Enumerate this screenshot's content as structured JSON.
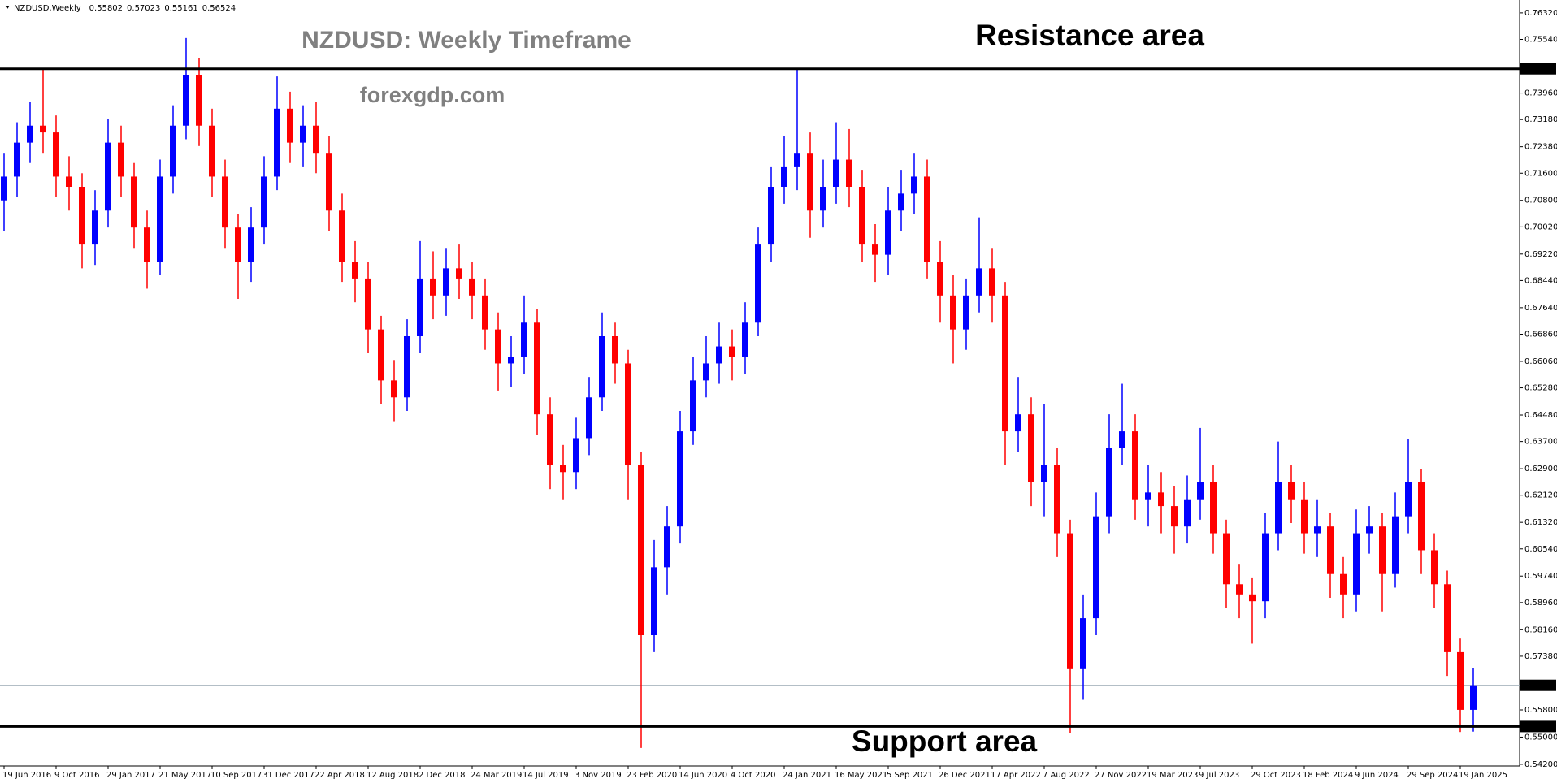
{
  "chart_data": {
    "type": "candlestick",
    "symbol": "NZDUSD,Weekly",
    "title": "NZDUSD: Weekly Timeframe",
    "watermark": "forexgdp.com",
    "annotations": {
      "resistance": "Resistance area",
      "support": "Support area"
    },
    "categories": [
      "19 Jun 2016",
      null,
      null,
      null,
      "9 Oct 2016",
      null,
      null,
      null,
      "29 Jan 2017",
      null,
      null,
      null,
      "21 May 2017",
      null,
      null,
      null,
      "10 Sep 2017",
      null,
      null,
      null,
      "31 Dec 2017",
      null,
      null,
      null,
      "22 Apr 2018",
      null,
      null,
      null,
      "12 Aug 2018",
      null,
      null,
      null,
      "2 Dec 2018",
      null,
      null,
      null,
      "24 Mar 2019",
      null,
      null,
      null,
      "14 Jul 2019",
      null,
      null,
      null,
      "3 Nov 2019",
      null,
      null,
      null,
      "23 Feb 2020",
      null,
      null,
      null,
      "14 Jun 2020",
      null,
      null,
      null,
      "4 Oct 2020",
      null,
      null,
      null,
      "24 Jan 2021",
      null,
      null,
      null,
      "16 May 2021",
      null,
      null,
      null,
      "5 Sep 2021",
      null,
      null,
      null,
      "26 Dec 2021",
      null,
      null,
      null,
      "17 Apr 2022",
      null,
      null,
      null,
      "7 Aug 2022",
      null,
      null,
      null,
      "27 Nov 2022",
      null,
      null,
      null,
      "19 Mar 2023",
      null,
      null,
      null,
      "9 Jul 2023",
      null,
      null,
      null,
      "29 Oct 2023",
      null,
      null,
      null,
      "18 Feb 2024",
      null,
      null,
      null,
      "9 Jun 2024",
      null,
      null,
      null,
      "29 Sep 2024",
      null,
      null,
      null,
      "19 Jan 2025",
      null
    ],
    "open": [
      0.708,
      0.715,
      0.725,
      0.73,
      0.728,
      0.715,
      0.712,
      0.695,
      0.705,
      0.725,
      0.715,
      0.7,
      0.69,
      0.715,
      0.73,
      0.745,
      0.73,
      0.715,
      0.7,
      0.69,
      0.7,
      0.715,
      0.735,
      0.725,
      0.73,
      0.722,
      0.705,
      0.69,
      0.685,
      0.67,
      0.655,
      0.65,
      0.668,
      0.685,
      0.68,
      0.688,
      0.685,
      0.68,
      0.67,
      0.66,
      0.662,
      0.672,
      0.645,
      0.63,
      0.628,
      0.638,
      0.65,
      0.668,
      0.66,
      0.63,
      0.58,
      0.6,
      0.612,
      0.64,
      0.655,
      0.66,
      0.665,
      0.662,
      0.672,
      0.695,
      0.712,
      0.718,
      0.722,
      0.705,
      0.712,
      0.72,
      0.712,
      0.695,
      0.692,
      0.705,
      0.71,
      0.715,
      0.69,
      0.68,
      0.67,
      0.68,
      0.688,
      0.68,
      0.64,
      0.645,
      0.625,
      0.63,
      0.61,
      0.57,
      0.585,
      0.615,
      0.635,
      0.64,
      0.62,
      0.622,
      0.618,
      0.612,
      0.62,
      0.625,
      0.61,
      0.595,
      0.592,
      0.59,
      0.61,
      0.625,
      0.62,
      0.61,
      0.612,
      0.598,
      0.592,
      0.61,
      0.612,
      0.598,
      0.615,
      0.625,
      0.605,
      0.595,
      0.575,
      0.55802
    ],
    "high": [
      0.722,
      0.731,
      0.737,
      0.7465,
      0.733,
      0.721,
      0.716,
      0.711,
      0.732,
      0.73,
      0.719,
      0.705,
      0.72,
      0.736,
      0.7558,
      0.75,
      0.735,
      0.72,
      0.704,
      0.706,
      0.721,
      0.7445,
      0.74,
      0.736,
      0.737,
      0.727,
      0.71,
      0.696,
      0.69,
      0.674,
      0.661,
      0.673,
      0.696,
      0.693,
      0.694,
      0.695,
      0.69,
      0.685,
      0.675,
      0.668,
      0.68,
      0.676,
      0.65,
      0.636,
      0.644,
      0.656,
      0.675,
      0.672,
      0.664,
      0.634,
      0.608,
      0.618,
      0.646,
      0.662,
      0.668,
      0.672,
      0.67,
      0.678,
      0.7,
      0.718,
      0.727,
      0.7465,
      0.728,
      0.72,
      0.731,
      0.729,
      0.717,
      0.701,
      0.712,
      0.717,
      0.722,
      0.72,
      0.696,
      0.686,
      0.685,
      0.703,
      0.694,
      0.684,
      0.656,
      0.65,
      0.648,
      0.635,
      0.614,
      0.592,
      0.622,
      0.645,
      0.654,
      0.645,
      0.63,
      0.628,
      0.624,
      0.627,
      0.641,
      0.63,
      0.614,
      0.601,
      0.597,
      0.616,
      0.637,
      0.63,
      0.625,
      0.62,
      0.616,
      0.603,
      0.617,
      0.618,
      0.616,
      0.622,
      0.6378,
      0.629,
      0.61,
      0.599,
      0.579,
      0.57023
    ],
    "low": [
      0.699,
      0.709,
      0.719,
      0.722,
      0.709,
      0.705,
      0.688,
      0.689,
      0.7,
      0.709,
      0.694,
      0.682,
      0.686,
      0.71,
      0.726,
      0.724,
      0.709,
      0.694,
      0.679,
      0.684,
      0.695,
      0.711,
      0.719,
      0.718,
      0.716,
      0.699,
      0.684,
      0.678,
      0.663,
      0.648,
      0.643,
      0.646,
      0.663,
      0.673,
      0.674,
      0.679,
      0.673,
      0.664,
      0.652,
      0.653,
      0.657,
      0.639,
      0.623,
      0.62,
      0.623,
      0.633,
      0.646,
      0.654,
      0.62,
      0.5468,
      0.575,
      0.592,
      0.607,
      0.636,
      0.65,
      0.654,
      0.655,
      0.657,
      0.668,
      0.69,
      0.707,
      0.711,
      0.697,
      0.7,
      0.707,
      0.706,
      0.69,
      0.684,
      0.686,
      0.699,
      0.704,
      0.685,
      0.672,
      0.66,
      0.664,
      0.675,
      0.672,
      0.63,
      0.634,
      0.618,
      0.615,
      0.603,
      0.5512,
      0.561,
      0.58,
      0.61,
      0.63,
      0.614,
      0.612,
      0.61,
      0.604,
      0.607,
      0.614,
      0.604,
      0.588,
      0.585,
      0.5775,
      0.585,
      0.605,
      0.613,
      0.604,
      0.603,
      0.591,
      0.585,
      0.587,
      0.604,
      0.587,
      0.594,
      0.61,
      0.598,
      0.588,
      0.568,
      0.5515,
      0.55161
    ],
    "close": [
      0.715,
      0.725,
      0.73,
      0.728,
      0.715,
      0.712,
      0.695,
      0.705,
      0.725,
      0.715,
      0.7,
      0.69,
      0.715,
      0.73,
      0.745,
      0.73,
      0.715,
      0.7,
      0.69,
      0.7,
      0.715,
      0.735,
      0.725,
      0.73,
      0.722,
      0.705,
      0.69,
      0.685,
      0.67,
      0.655,
      0.65,
      0.668,
      0.685,
      0.68,
      0.688,
      0.685,
      0.68,
      0.67,
      0.66,
      0.662,
      0.672,
      0.645,
      0.63,
      0.628,
      0.638,
      0.65,
      0.668,
      0.66,
      0.63,
      0.58,
      0.6,
      0.612,
      0.64,
      0.655,
      0.66,
      0.665,
      0.662,
      0.672,
      0.695,
      0.712,
      0.718,
      0.722,
      0.705,
      0.712,
      0.72,
      0.712,
      0.695,
      0.692,
      0.705,
      0.71,
      0.715,
      0.69,
      0.68,
      0.67,
      0.68,
      0.688,
      0.68,
      0.64,
      0.645,
      0.625,
      0.63,
      0.61,
      0.57,
      0.585,
      0.615,
      0.635,
      0.64,
      0.62,
      0.622,
      0.618,
      0.612,
      0.62,
      0.625,
      0.61,
      0.595,
      0.592,
      0.59,
      0.61,
      0.625,
      0.62,
      0.61,
      0.612,
      0.598,
      0.592,
      0.61,
      0.612,
      0.598,
      0.615,
      0.625,
      0.605,
      0.595,
      0.575,
      0.55802,
      0.56524
    ],
    "up_color": "#0000ff",
    "down_color": "#ff0000",
    "ylim": [
      0.5415,
      0.767
    ],
    "yticks": [
      {
        "value": 0.7632,
        "label": "0.76320"
      },
      {
        "value": 0.7554,
        "label": "0.75540"
      },
      {
        "value": 0.7396,
        "label": "0.73960"
      },
      {
        "value": 0.7318,
        "label": "0.73180"
      },
      {
        "value": 0.7238,
        "label": "0.72380"
      },
      {
        "value": 0.716,
        "label": "0.71600"
      },
      {
        "value": 0.708,
        "label": "0.70800"
      },
      {
        "value": 0.7002,
        "label": "0.70020"
      },
      {
        "value": 0.6922,
        "label": "0.69220"
      },
      {
        "value": 0.6844,
        "label": "0.68440"
      },
      {
        "value": 0.6764,
        "label": "0.67640"
      },
      {
        "value": 0.6686,
        "label": "0.66860"
      },
      {
        "value": 0.6606,
        "label": "0.66060"
      },
      {
        "value": 0.6528,
        "label": "0.65280"
      },
      {
        "value": 0.6448,
        "label": "0.64480"
      },
      {
        "value": 0.637,
        "label": "0.63700"
      },
      {
        "value": 0.629,
        "label": "0.62900"
      },
      {
        "value": 0.6212,
        "label": "0.62120"
      },
      {
        "value": 0.6132,
        "label": "0.61320"
      },
      {
        "value": 0.6054,
        "label": "0.60540"
      },
      {
        "value": 0.5974,
        "label": "0.59740"
      },
      {
        "value": 0.5896,
        "label": "0.58960"
      },
      {
        "value": 0.5816,
        "label": "0.58160"
      },
      {
        "value": 0.5738,
        "label": "0.57380"
      },
      {
        "value": 0.558,
        "label": "0.55800"
      },
      {
        "value": 0.55,
        "label": "0.55000"
      },
      {
        "value": 0.542,
        "label": "0.54200"
      }
    ],
    "levels": [
      0.74674,
      0.55312
    ],
    "level_color": "#000000",
    "current_price_color": "#9aa8b4"
  }
}
